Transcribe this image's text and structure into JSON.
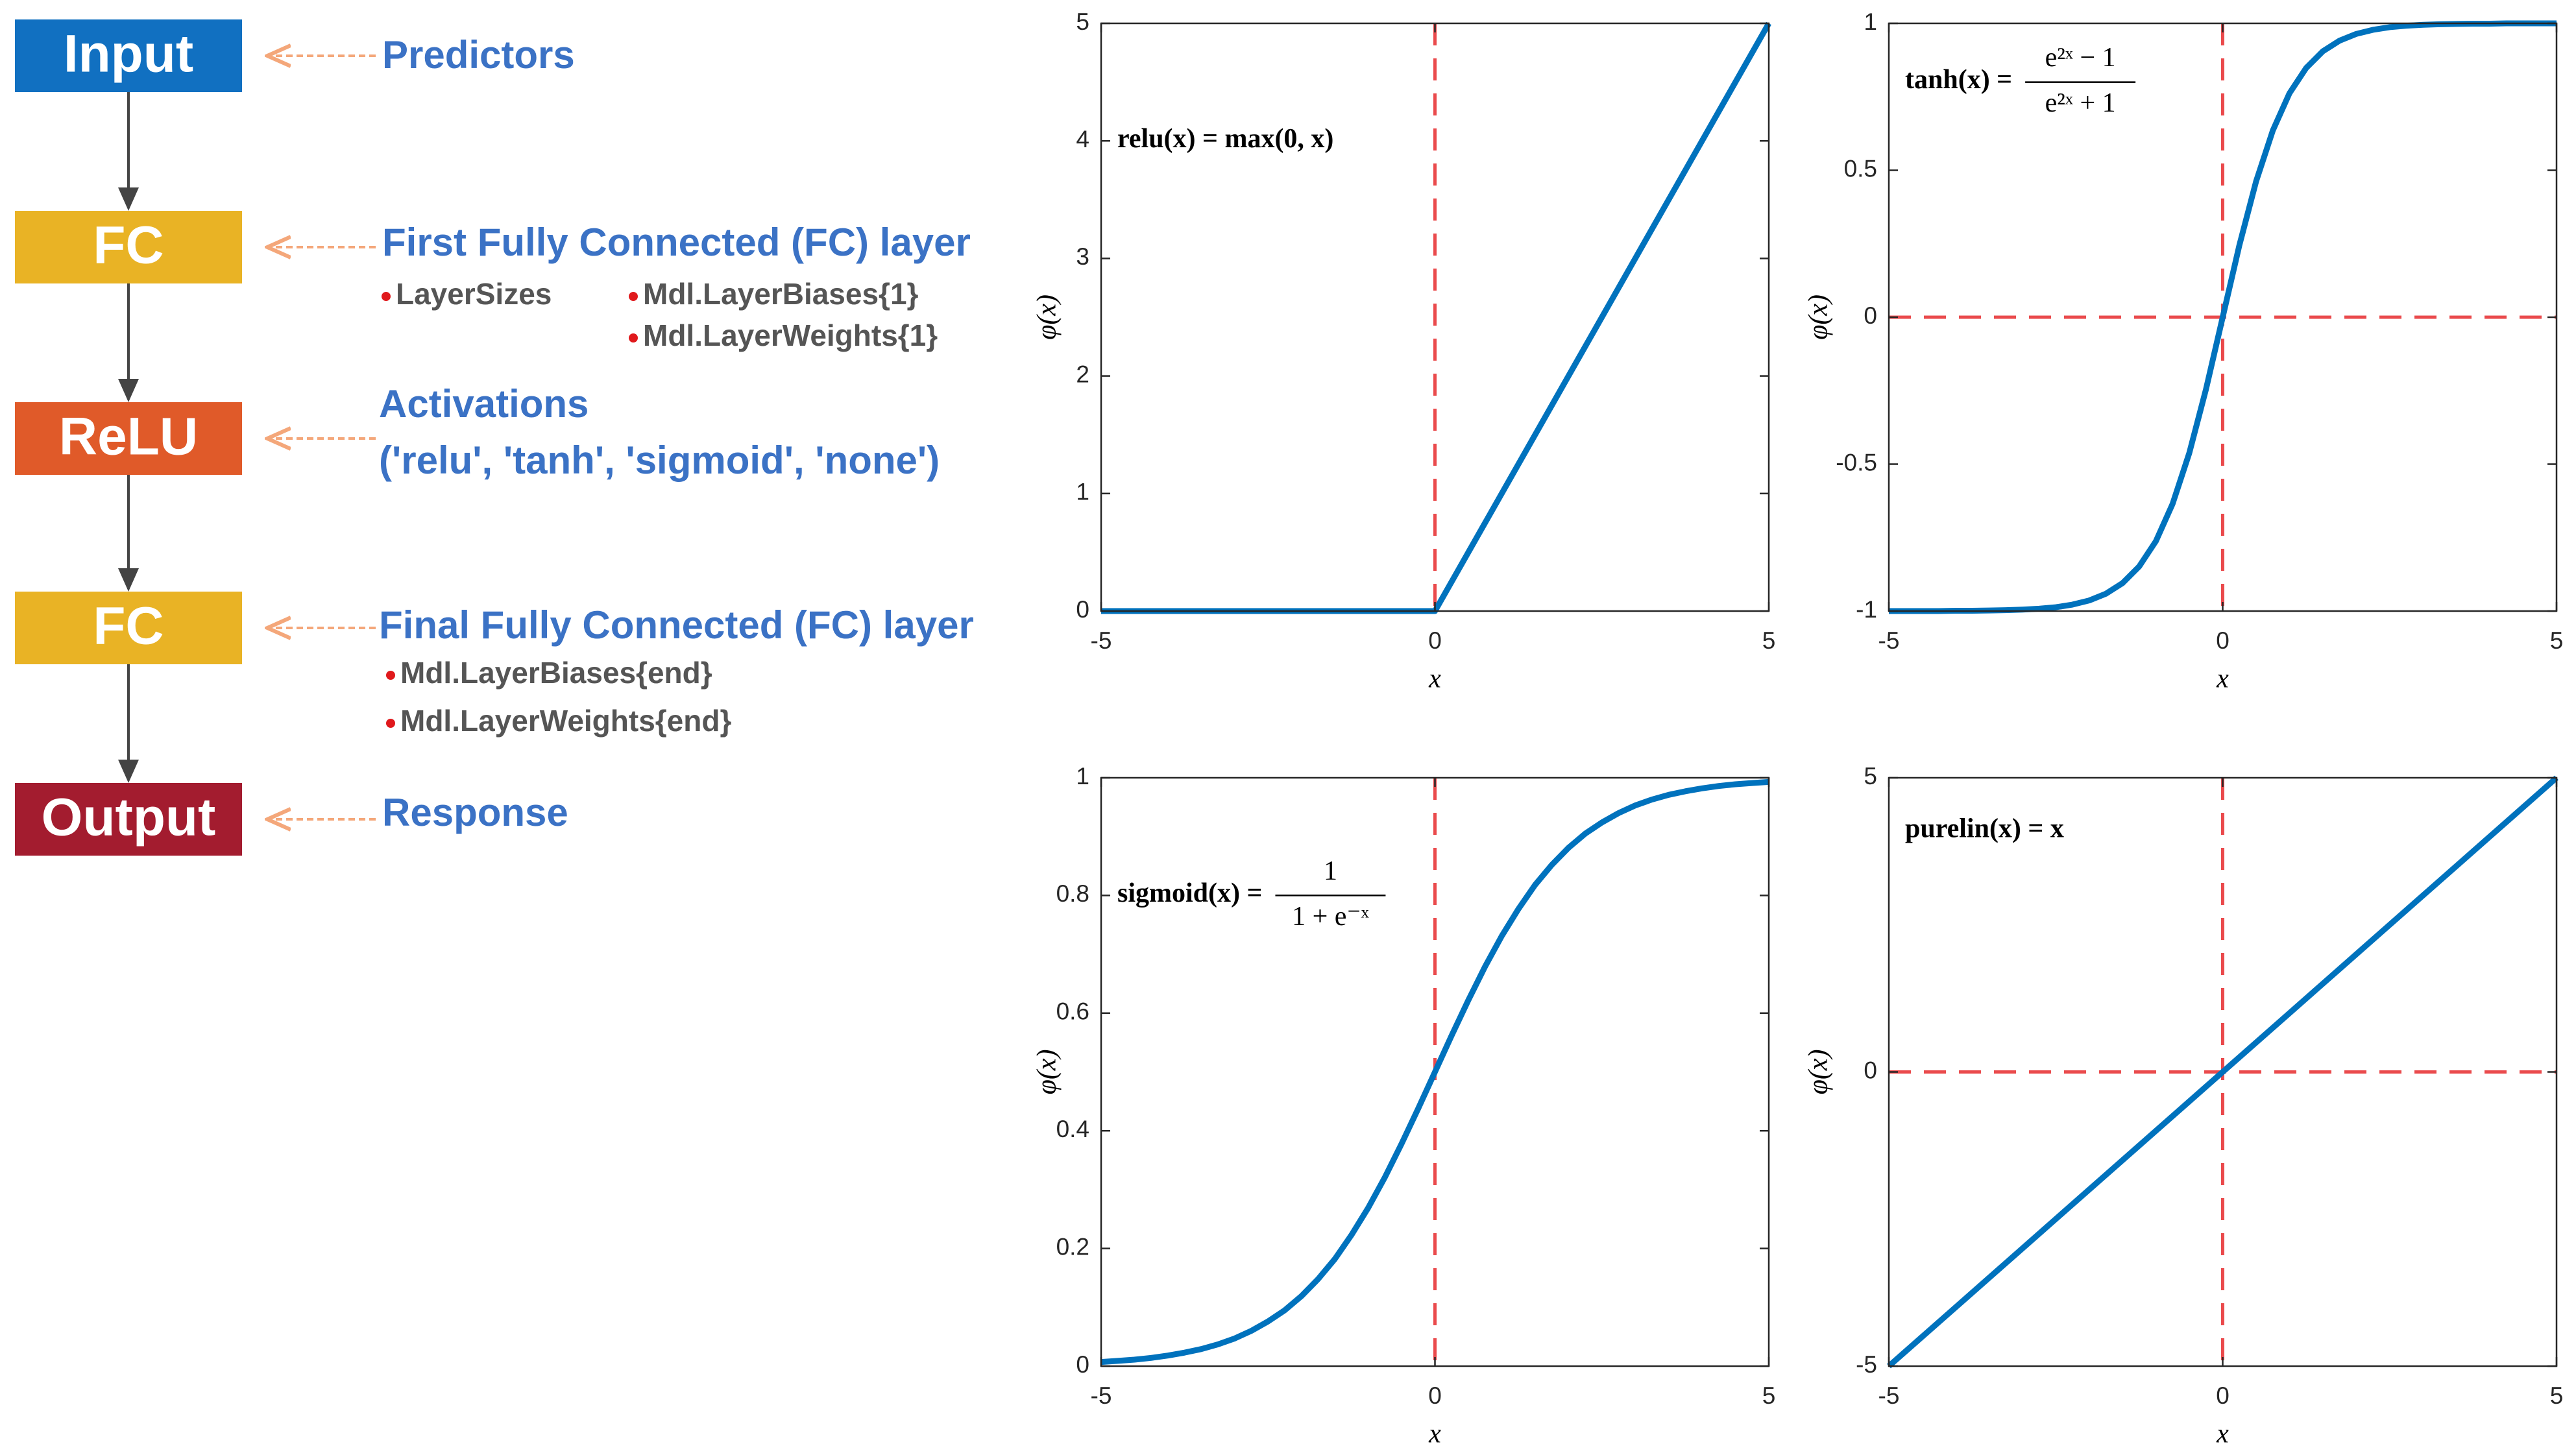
{
  "diagram": {
    "layers": [
      {
        "label": "Input",
        "color": "#1170c1",
        "description": "Predictors"
      },
      {
        "label": "FC",
        "color": "#e9b325",
        "description": "First Fully Connected (FC) layer",
        "bullets": [
          "LayerSizes",
          "Mdl.LayerBiases{1}",
          "Mdl.LayerWeights{1}"
        ]
      },
      {
        "label": "ReLU",
        "color": "#e05a29",
        "description": "Activations",
        "options": "('relu', 'tanh', 'sigmoid', 'none')"
      },
      {
        "label": "FC",
        "color": "#e9b325",
        "description": "Final Fully Connected (FC) layer",
        "bullets": [
          "Mdl.LayerBiases{end}",
          "Mdl.LayerWeights{end}"
        ]
      },
      {
        "label": "Output",
        "color": "#a31c2f",
        "description": "Response"
      }
    ]
  },
  "chart_data": [
    {
      "type": "line",
      "annotation": {
        "text": "relu(x) = max(0, x)"
      },
      "xlabel": "x",
      "ylabel": "φ(x)",
      "x": [
        -5,
        0,
        5
      ],
      "series": [
        {
          "color": "#0072bd",
          "values": [
            0,
            0,
            5
          ]
        }
      ],
      "xlim": [
        -5,
        5
      ],
      "ylim": [
        0,
        5
      ],
      "xticks": [
        -5,
        0,
        5
      ],
      "yticks": [
        0,
        1,
        2,
        3,
        4,
        5
      ],
      "ref_lines": {
        "x": [
          0
        ]
      },
      "ref_color": "#ea4a4c"
    },
    {
      "type": "line",
      "annotation": {
        "lhs": "tanh(x) =",
        "numerator": "e²ˣ − 1",
        "denominator": "e²ˣ + 1"
      },
      "xlabel": "x",
      "ylabel": "φ(x)",
      "x": [
        -5,
        -4.75,
        -4.5,
        -4.25,
        -4,
        -3.75,
        -3.5,
        -3.25,
        -3,
        -2.75,
        -2.5,
        -2.25,
        -2,
        -1.75,
        -1.5,
        -1.25,
        -1,
        -0.75,
        -0.5,
        -0.25,
        0,
        0.25,
        0.5,
        0.75,
        1,
        1.25,
        1.5,
        1.75,
        2,
        2.25,
        2.5,
        2.75,
        3,
        3.25,
        3.5,
        3.75,
        4,
        4.25,
        4.5,
        4.75,
        5
      ],
      "series": [
        {
          "color": "#0072bd",
          "values": [
            -1,
            -1,
            -1,
            -1,
            -0.999,
            -0.999,
            -0.998,
            -0.997,
            -0.995,
            -0.992,
            -0.987,
            -0.978,
            -0.964,
            -0.941,
            -0.905,
            -0.848,
            -0.762,
            -0.635,
            -0.462,
            -0.245,
            0,
            0.245,
            0.462,
            0.635,
            0.762,
            0.848,
            0.905,
            0.941,
            0.964,
            0.978,
            0.987,
            0.992,
            0.995,
            0.997,
            0.998,
            0.999,
            0.999,
            1,
            1,
            1,
            1
          ]
        }
      ],
      "xlim": [
        -5,
        5
      ],
      "ylim": [
        -1,
        1
      ],
      "xticks": [
        -5,
        0,
        5
      ],
      "yticks": [
        -1,
        -0.5,
        0,
        0.5,
        1
      ],
      "ref_lines": {
        "x": [
          0
        ],
        "y": [
          0
        ]
      },
      "ref_color": "#ea4a4c"
    },
    {
      "type": "line",
      "annotation": {
        "lhs": "sigmoid(x) =",
        "numerator": "1",
        "denominator": "1 + e⁻ˣ"
      },
      "xlabel": "x",
      "ylabel": "φ(x)",
      "x": [
        -5,
        -4.75,
        -4.5,
        -4.25,
        -4,
        -3.75,
        -3.5,
        -3.25,
        -3,
        -2.75,
        -2.5,
        -2.25,
        -2,
        -1.75,
        -1.5,
        -1.25,
        -1,
        -0.75,
        -0.5,
        -0.25,
        0,
        0.25,
        0.5,
        0.75,
        1,
        1.25,
        1.5,
        1.75,
        2,
        2.25,
        2.5,
        2.75,
        3,
        3.25,
        3.5,
        3.75,
        4,
        4.25,
        4.5,
        4.75,
        5
      ],
      "series": [
        {
          "color": "#0072bd",
          "values": [
            0.007,
            0.009,
            0.011,
            0.014,
            0.018,
            0.023,
            0.029,
            0.037,
            0.047,
            0.06,
            0.076,
            0.095,
            0.119,
            0.148,
            0.182,
            0.223,
            0.269,
            0.321,
            0.378,
            0.438,
            0.5,
            0.562,
            0.622,
            0.679,
            0.731,
            0.777,
            0.818,
            0.852,
            0.881,
            0.905,
            0.924,
            0.94,
            0.953,
            0.963,
            0.971,
            0.977,
            0.982,
            0.986,
            0.989,
            0.991,
            0.993
          ]
        }
      ],
      "xlim": [
        -5,
        5
      ],
      "ylim": [
        0,
        1
      ],
      "xticks": [
        -5,
        0,
        5
      ],
      "yticks": [
        0,
        0.2,
        0.4,
        0.6,
        0.8,
        1
      ],
      "ref_lines": {
        "x": [
          0
        ]
      },
      "ref_color": "#ea4a4c"
    },
    {
      "type": "line",
      "annotation": {
        "text": "purelin(x) = x"
      },
      "xlabel": "x",
      "ylabel": "φ(x)",
      "x": [
        -5,
        5
      ],
      "series": [
        {
          "color": "#0072bd",
          "values": [
            -5,
            5
          ]
        }
      ],
      "xlim": [
        -5,
        5
      ],
      "ylim": [
        -5,
        5
      ],
      "xticks": [
        -5,
        0,
        5
      ],
      "yticks": [
        -5,
        0,
        5
      ],
      "ref_lines": {
        "x": [
          0
        ],
        "y": [
          0
        ]
      },
      "ref_color": "#ea4a4c"
    }
  ]
}
